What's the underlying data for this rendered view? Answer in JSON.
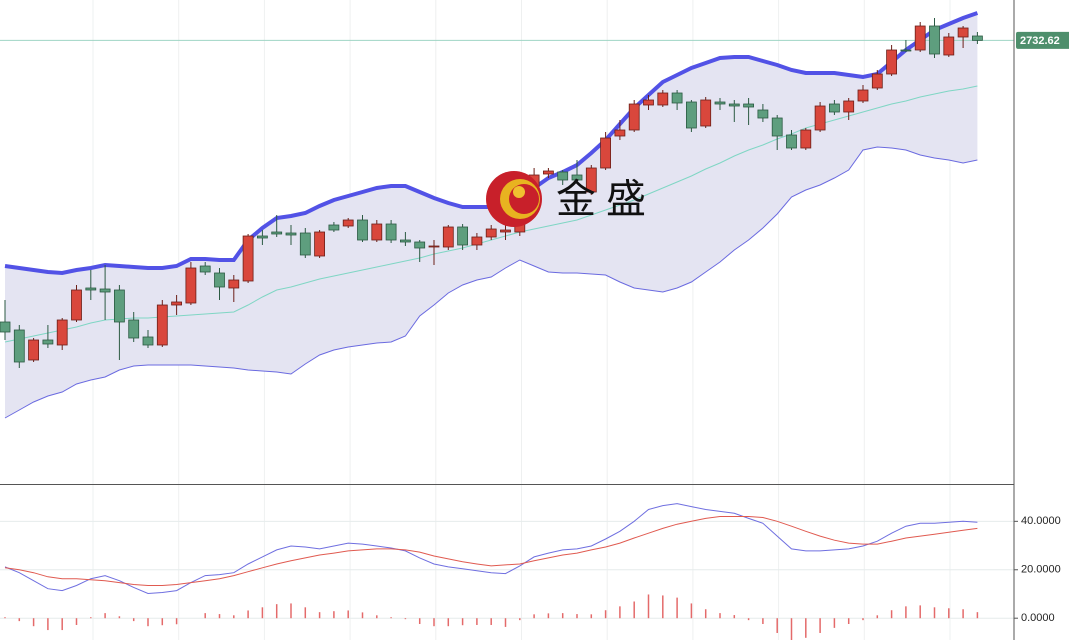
{
  "watermark": "金盛",
  "chart_data": [
    {
      "type": "candlestick",
      "up_color": "#d9473c",
      "down_color": "#5e9e7e",
      "band_fill": "#e4e4f2",
      "ylim": [
        2290,
        2773
      ],
      "open": [
        2451,
        2443,
        2413,
        2433,
        2428,
        2453,
        2485,
        2484,
        2483,
        2453,
        2436,
        2428,
        2468,
        2470,
        2507,
        2500,
        2485,
        2492,
        2537,
        2541,
        2540,
        2540,
        2517,
        2548,
        2547,
        2553,
        2533,
        2549,
        2533,
        2531,
        2526,
        2526,
        2546,
        2528,
        2536,
        2541,
        2541,
        2581,
        2599,
        2601,
        2598,
        2581,
        2605,
        2637,
        2643,
        2668,
        2668,
        2680,
        2671,
        2647,
        2671,
        2669,
        2669,
        2663,
        2655,
        2638,
        2625,
        2643,
        2669,
        2661,
        2672,
        2685,
        2699,
        2723,
        2723,
        2747,
        2718,
        2736,
        2737
      ],
      "high": [
        2473,
        2448,
        2435,
        2448,
        2455,
        2488,
        2503,
        2508,
        2488,
        2461,
        2443,
        2473,
        2478,
        2511,
        2511,
        2505,
        2498,
        2539,
        2543,
        2558,
        2548,
        2545,
        2543,
        2551,
        2555,
        2558,
        2553,
        2553,
        2541,
        2533,
        2533,
        2548,
        2549,
        2540,
        2548,
        2548,
        2583,
        2605,
        2605,
        2603,
        2613,
        2608,
        2641,
        2653,
        2673,
        2678,
        2683,
        2683,
        2673,
        2676,
        2675,
        2673,
        2675,
        2669,
        2658,
        2643,
        2645,
        2671,
        2673,
        2675,
        2688,
        2703,
        2728,
        2733,
        2751,
        2755,
        2740,
        2747,
        2741
      ],
      "low": [
        2433,
        2405,
        2411,
        2425,
        2423,
        2451,
        2473,
        2453,
        2413,
        2431,
        2425,
        2426,
        2458,
        2468,
        2498,
        2473,
        2471,
        2490,
        2528,
        2536,
        2528,
        2515,
        2515,
        2541,
        2545,
        2531,
        2531,
        2530,
        2527,
        2511,
        2508,
        2523,
        2523,
        2523,
        2533,
        2533,
        2537,
        2578,
        2595,
        2588,
        2591,
        2578,
        2603,
        2633,
        2641,
        2663,
        2666,
        2663,
        2641,
        2645,
        2663,
        2651,
        2648,
        2651,
        2623,
        2623,
        2623,
        2641,
        2658,
        2653,
        2670,
        2683,
        2697,
        2721,
        2721,
        2715,
        2716,
        2725,
        2729
      ],
      "close": [
        2441,
        2411,
        2433,
        2429,
        2453,
        2483,
        2483,
        2481,
        2451,
        2435,
        2428,
        2468,
        2471,
        2505,
        2501,
        2486,
        2493,
        2537,
        2535,
        2539,
        2538,
        2518,
        2541,
        2543,
        2553,
        2533,
        2549,
        2533,
        2531,
        2525,
        2527,
        2546,
        2528,
        2536,
        2544,
        2543,
        2575,
        2598,
        2602,
        2593,
        2593,
        2605,
        2635,
        2643,
        2669,
        2673,
        2680,
        2670,
        2645,
        2673,
        2669,
        2667,
        2666,
        2655,
        2637,
        2625,
        2643,
        2667,
        2661,
        2672,
        2683,
        2699,
        2723,
        2722,
        2747,
        2719,
        2736,
        2745,
        2732.62
      ],
      "series": [
        {
          "color": "#5252e6",
          "values": [
            2507,
            2505,
            2503,
            2501,
            2500,
            2503,
            2505,
            2508,
            2507,
            2506,
            2505,
            2505,
            2507,
            2514,
            2514,
            2513,
            2513,
            2533,
            2545,
            2555,
            2557,
            2560,
            2567,
            2573,
            2577,
            2581,
            2585,
            2587,
            2587,
            2581,
            2575,
            2570,
            2566,
            2566,
            2566,
            2570,
            2575,
            2585,
            2595,
            2601,
            2608,
            2620,
            2633,
            2649,
            2665,
            2678,
            2691,
            2698,
            2705,
            2710,
            2715,
            2716,
            2716,
            2712,
            2708,
            2703,
            2700,
            2700,
            2700,
            2698,
            2696,
            2699,
            2711,
            2723,
            2733,
            2743,
            2749,
            2755,
            2760
          ]
        },
        {
          "color": "#7fd6c4",
          "values": [
            2431,
            2434,
            2437,
            2440,
            2443,
            2446,
            2450,
            2453,
            2454,
            2455,
            2455,
            2456,
            2457,
            2458,
            2459,
            2460,
            2461,
            2468,
            2476,
            2483,
            2486,
            2490,
            2494,
            2497,
            2500,
            2503,
            2506,
            2509,
            2512,
            2515,
            2519,
            2522,
            2525,
            2529,
            2533,
            2537,
            2541,
            2544,
            2547,
            2550,
            2553,
            2558,
            2563,
            2568,
            2573,
            2579,
            2585,
            2591,
            2597,
            2604,
            2610,
            2617,
            2623,
            2628,
            2634,
            2639,
            2645,
            2649,
            2653,
            2657,
            2661,
            2665,
            2669,
            2672,
            2676,
            2679,
            2682,
            2684,
            2687
          ]
        },
        {
          "color": "#6a6ae0",
          "values": [
            2355,
            2363,
            2371,
            2377,
            2381,
            2389,
            2393,
            2396,
            2403,
            2407,
            2408,
            2408,
            2408,
            2408,
            2407,
            2406,
            2405,
            2403,
            2402,
            2401,
            2399,
            2409,
            2418,
            2423,
            2426,
            2428,
            2430,
            2431,
            2437,
            2457,
            2468,
            2480,
            2488,
            2493,
            2496,
            2505,
            2513,
            2507,
            2501,
            2500,
            2500,
            2499,
            2498,
            2491,
            2485,
            2483,
            2481,
            2485,
            2491,
            2501,
            2511,
            2523,
            2533,
            2545,
            2559,
            2576,
            2583,
            2588,
            2595,
            2603,
            2623,
            2626,
            2625,
            2623,
            2618,
            2615,
            2613,
            2610,
            2613
          ]
        }
      ]
    },
    {
      "type": "macd",
      "ylim": [
        -9,
        55
      ],
      "yticks": [
        {
          "value": 0,
          "label": "0.0000"
        },
        {
          "value": 20,
          "label": "20.0000"
        },
        {
          "value": 40,
          "label": "40.0000"
        }
      ],
      "series": [
        {
          "color": "#6f6fe0",
          "values": [
            21.2,
            18.8,
            15.5,
            12.2,
            11.4,
            13.5,
            16.3,
            17.6,
            15.5,
            12.7,
            10.2,
            10.6,
            11.4,
            14.7,
            17.6,
            18.0,
            18.8,
            22.4,
            25.3,
            28.2,
            29.8,
            29.4,
            28.6,
            29.8,
            31.0,
            30.6,
            29.8,
            29.0,
            27.8,
            24.9,
            22.4,
            21.2,
            20.4,
            19.6,
            18.8,
            18.4,
            21.6,
            25.3,
            26.9,
            28.2,
            28.6,
            29.8,
            32.7,
            35.9,
            40.0,
            44.9,
            46.5,
            47.3,
            46.1,
            44.9,
            44.1,
            43.3,
            41.2,
            39.2,
            33.9,
            28.6,
            27.8,
            27.8,
            28.2,
            28.6,
            29.8,
            31.8,
            35.1,
            38.0,
            39.2,
            39.2,
            39.6,
            40.0,
            39.6
          ]
        },
        {
          "color": "#e05a50",
          "values": [
            20.8,
            20.0,
            18.8,
            17.1,
            16.3,
            16.3,
            15.9,
            15.5,
            14.7,
            13.9,
            13.5,
            13.5,
            13.9,
            14.7,
            15.5,
            16.3,
            17.6,
            19.2,
            20.8,
            22.4,
            23.7,
            24.9,
            26.1,
            26.9,
            27.8,
            28.2,
            28.6,
            28.6,
            28.2,
            27.3,
            25.7,
            24.5,
            23.3,
            22.4,
            21.6,
            22.0,
            22.4,
            23.7,
            24.9,
            26.1,
            26.9,
            28.2,
            29.4,
            31.0,
            33.1,
            35.1,
            37.1,
            38.8,
            40.0,
            41.2,
            42.0,
            42.0,
            42.0,
            41.6,
            40.0,
            38.0,
            35.9,
            33.9,
            32.2,
            31.0,
            30.6,
            30.6,
            31.8,
            33.1,
            33.9,
            34.7,
            35.5,
            36.3,
            37.1
          ]
        }
      ],
      "bars": {
        "color": "#e46a6a",
        "values": [
          0.4,
          -1.2,
          -3.3,
          -4.9,
          -4.9,
          -2.8,
          0.4,
          2.1,
          0.8,
          -1.2,
          -3.3,
          -2.9,
          -2.5,
          0,
          2.1,
          1.7,
          1.2,
          3.2,
          4.5,
          5.8,
          6.1,
          4.5,
          2.5,
          2.9,
          3.2,
          2.4,
          1.2,
          0.4,
          -0.4,
          -2.4,
          -3.3,
          -3.3,
          -2.9,
          -2.8,
          -2.8,
          -3.6,
          -0.8,
          1.6,
          2.0,
          2.1,
          1.7,
          1.6,
          3.3,
          4.9,
          6.9,
          9.8,
          9.4,
          8.5,
          6.1,
          3.7,
          2.1,
          1.3,
          -0.8,
          -2.4,
          -6.1,
          -9.4,
          -8.1,
          -6.1,
          -4.0,
          -2.4,
          -0.8,
          1.2,
          3.3,
          4.9,
          5.3,
          4.5,
          4.1,
          3.7,
          2.5
        ]
      }
    }
  ]
}
